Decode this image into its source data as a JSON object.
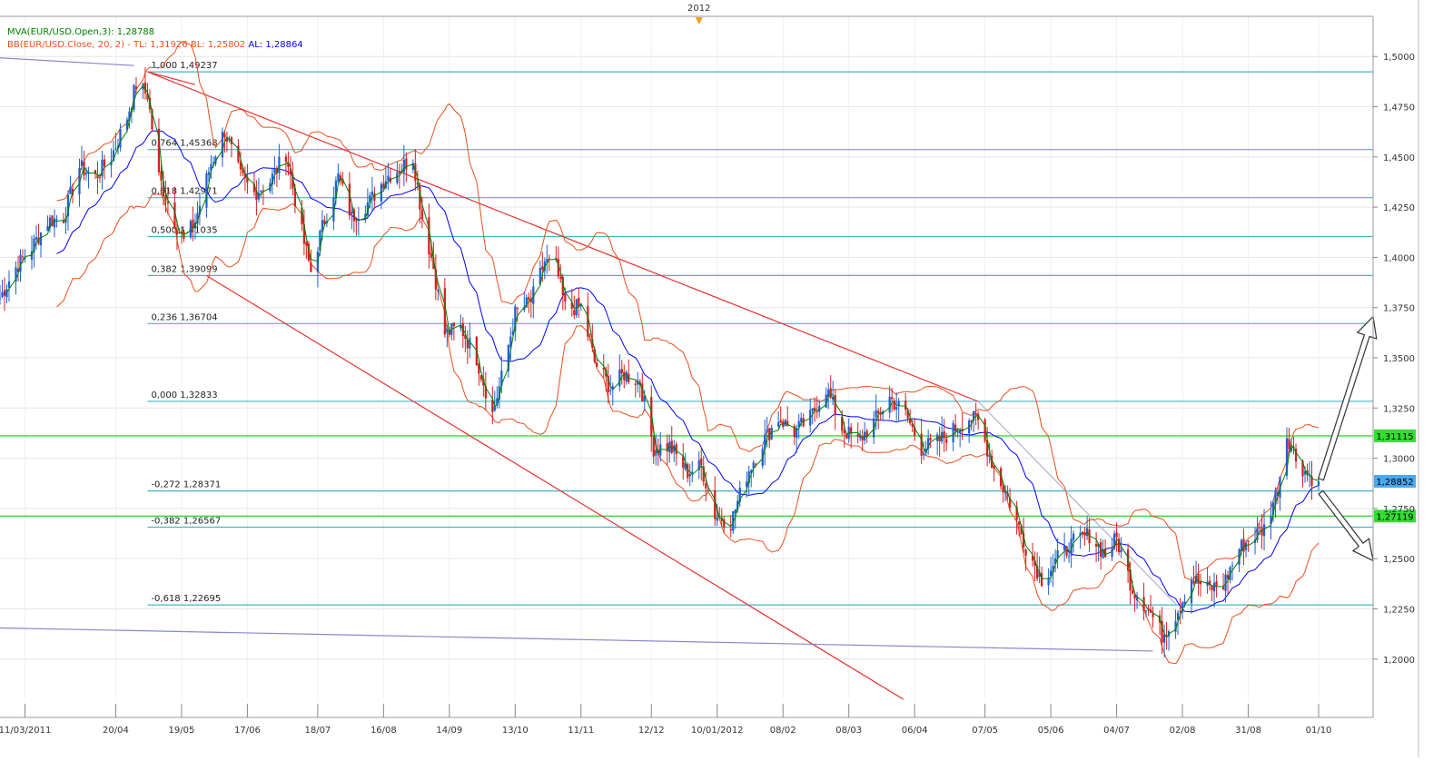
{
  "chart_data": {
    "type": "candlestick",
    "instrument": "EUR/USD",
    "period_marker": {
      "label": "2012",
      "date": "2012-01-02"
    },
    "legend": {
      "mva": {
        "label": "MVA(EUR/USD.Open,3): 1,28788",
        "color": "#008000"
      },
      "bb": {
        "name": "BB(EUR/USD.Close, 20, 2) -",
        "tl": "TL: 1,31926",
        "bl": "BL: 1,25802",
        "al": "AL: 1,28864",
        "color": "#e8501c",
        "al_color": "#0000ff"
      }
    },
    "x_axis": {
      "start": "2011-02-28",
      "end": "2012-10-25",
      "ticks": [
        {
          "label": "11/03/2011",
          "date": "2011-03-11"
        },
        {
          "label": "20/04",
          "date": "2011-04-20"
        },
        {
          "label": "19/05",
          "date": "2011-05-19"
        },
        {
          "label": "17/06",
          "date": "2011-06-17"
        },
        {
          "label": "18/07",
          "date": "2011-07-18"
        },
        {
          "label": "16/08",
          "date": "2011-08-16"
        },
        {
          "label": "14/09",
          "date": "2011-09-14"
        },
        {
          "label": "13/10",
          "date": "2011-10-13"
        },
        {
          "label": "11/11",
          "date": "2011-11-11"
        },
        {
          "label": "12/12",
          "date": "2011-12-12"
        },
        {
          "label": "10/01/2012",
          "date": "2012-01-10"
        },
        {
          "label": "08/02",
          "date": "2012-02-08"
        },
        {
          "label": "08/03",
          "date": "2012-03-08"
        },
        {
          "label": "06/04",
          "date": "2012-04-06"
        },
        {
          "label": "07/05",
          "date": "2012-05-07"
        },
        {
          "label": "05/06",
          "date": "2012-06-05"
        },
        {
          "label": "04/07",
          "date": "2012-07-04"
        },
        {
          "label": "02/08",
          "date": "2012-08-02"
        },
        {
          "label": "31/08",
          "date": "2012-08-31"
        },
        {
          "label": "01/10",
          "date": "2012-10-01"
        }
      ]
    },
    "y_axis": {
      "min": 1.18,
      "max": 1.52,
      "ticks": [
        "1,5000",
        "1,4750",
        "1,4500",
        "1,4250",
        "1,4000",
        "1,3750",
        "1,3500",
        "1,3250",
        "1,3000",
        "1,2750",
        "1,2500",
        "1,2250",
        "1,2000"
      ],
      "tick_values": [
        1.5,
        1.475,
        1.45,
        1.425,
        1.4,
        1.375,
        1.35,
        1.325,
        1.3,
        1.275,
        1.25,
        1.225,
        1.2
      ],
      "gridlines": true,
      "position": "right"
    },
    "fibonacci": {
      "color": "#46b4c8",
      "start_date": "2011-05-04",
      "levels": [
        {
          "label": "1,000 1,49237",
          "value": 1.49237
        },
        {
          "label": "0,764 1,45368",
          "value": 1.45368
        },
        {
          "label": "0,618 1,42971",
          "value": 1.42971
        },
        {
          "label": "0,500 1,41035",
          "value": 1.41035
        },
        {
          "label": "0,382 1,39099",
          "value": 1.39099
        },
        {
          "label": "0,236 1,36704",
          "value": 1.36704
        },
        {
          "label": "0,000 1,32833",
          "value": 1.32833
        },
        {
          "label": "-0,272 1,28371",
          "value": 1.28371
        },
        {
          "label": "-0,382 1,26567",
          "value": 1.26567
        },
        {
          "label": "-0,618 1,22695",
          "value": 1.22695
        }
      ]
    },
    "horizontal_lines": {
      "color": "#33dd33",
      "levels": [
        {
          "label": "1,31115",
          "value": 1.31115
        },
        {
          "label": "1,27119",
          "value": 1.27119
        }
      ]
    },
    "last_price": {
      "label": "1,28852",
      "value": 1.28852,
      "color": "#4aa8f0"
    },
    "trendlines": [
      {
        "color": "#e83030",
        "points": [
          [
            "2011-05-04",
            1.4924
          ],
          [
            "2012-05-04",
            1.3283
          ]
        ]
      },
      {
        "color": "#e83030",
        "points": [
          [
            "2011-05-04",
            1.4924
          ],
          [
            "2011-05-25",
            1.486
          ]
        ]
      },
      {
        "color": "#e83030",
        "points": [
          [
            "2011-05-30",
            1.3909
          ],
          [
            "2012-04-01",
            1.18
          ]
        ]
      },
      {
        "color": "#8888cc",
        "points": [
          [
            "2011-02-28",
            1.4993
          ],
          [
            "2011-04-28",
            1.4955
          ]
        ]
      },
      {
        "color": "#8888cc",
        "points": [
          [
            "2011-02-28",
            1.2155
          ],
          [
            "2012-07-20",
            1.204
          ]
        ]
      },
      {
        "color": "#b0b0d0",
        "points": [
          [
            "2012-05-04",
            1.3283
          ],
          [
            "2012-07-30",
            1.2275
          ]
        ]
      }
    ],
    "projection_arrows": [
      {
        "direction": "up",
        "points": [
          [
            "2012-10-02",
            1.2895
          ],
          [
            "2012-10-25",
            1.3705
          ]
        ]
      },
      {
        "direction": "down",
        "points": [
          [
            "2012-10-02",
            1.283
          ],
          [
            "2012-10-25",
            1.249
          ]
        ]
      }
    ],
    "series": [
      {
        "name": "EUR/USD (daily close, approx.)",
        "color_up": "#2060d0",
        "color_down": "#d42020",
        "points": [
          [
            "2011-02-28",
            1.38
          ],
          [
            "2011-03-07",
            1.395
          ],
          [
            "2011-03-14",
            1.405
          ],
          [
            "2011-03-21",
            1.418
          ],
          [
            "2011-03-28",
            1.42
          ],
          [
            "2011-04-04",
            1.445
          ],
          [
            "2011-04-11",
            1.44
          ],
          [
            "2011-04-18",
            1.45
          ],
          [
            "2011-04-25",
            1.47
          ],
          [
            "2011-04-29",
            1.486
          ],
          [
            "2011-05-04",
            1.481
          ],
          [
            "2011-05-09",
            1.44
          ],
          [
            "2011-05-16",
            1.418
          ],
          [
            "2011-05-20",
            1.408
          ],
          [
            "2011-05-25",
            1.418
          ],
          [
            "2011-06-01",
            1.447
          ],
          [
            "2011-06-07",
            1.463
          ],
          [
            "2011-06-14",
            1.44
          ],
          [
            "2011-06-20",
            1.432
          ],
          [
            "2011-06-27",
            1.438
          ],
          [
            "2011-07-04",
            1.452
          ],
          [
            "2011-07-11",
            1.412
          ],
          [
            "2011-07-15",
            1.393
          ],
          [
            "2011-07-20",
            1.415
          ],
          [
            "2011-07-27",
            1.44
          ],
          [
            "2011-08-02",
            1.42
          ],
          [
            "2011-08-10",
            1.428
          ],
          [
            "2011-08-17",
            1.44
          ],
          [
            "2011-08-24",
            1.445
          ],
          [
            "2011-08-29",
            1.45
          ],
          [
            "2011-09-02",
            1.42
          ],
          [
            "2011-09-07",
            1.395
          ],
          [
            "2011-09-12",
            1.362
          ],
          [
            "2011-09-19",
            1.365
          ],
          [
            "2011-09-26",
            1.35
          ],
          [
            "2011-10-03",
            1.322
          ],
          [
            "2011-10-07",
            1.34
          ],
          [
            "2011-10-13",
            1.372
          ],
          [
            "2011-10-20",
            1.378
          ],
          [
            "2011-10-26",
            1.398
          ],
          [
            "2011-10-31",
            1.395
          ],
          [
            "2011-11-04",
            1.375
          ],
          [
            "2011-11-11",
            1.375
          ],
          [
            "2011-11-17",
            1.348
          ],
          [
            "2011-11-24",
            1.335
          ],
          [
            "2011-11-30",
            1.342
          ],
          [
            "2011-12-07",
            1.338
          ],
          [
            "2011-12-13",
            1.305
          ],
          [
            "2011-12-20",
            1.306
          ],
          [
            "2011-12-28",
            1.293
          ],
          [
            "2012-01-03",
            1.296
          ],
          [
            "2012-01-09",
            1.272
          ],
          [
            "2012-01-16",
            1.268
          ],
          [
            "2012-01-23",
            1.292
          ],
          [
            "2012-01-30",
            1.308
          ],
          [
            "2012-02-06",
            1.32
          ],
          [
            "2012-02-13",
            1.313
          ],
          [
            "2012-02-20",
            1.32
          ],
          [
            "2012-02-27",
            1.335
          ],
          [
            "2012-03-05",
            1.315
          ],
          [
            "2012-03-12",
            1.308
          ],
          [
            "2012-03-19",
            1.318
          ],
          [
            "2012-03-26",
            1.33
          ],
          [
            "2012-04-02",
            1.322
          ],
          [
            "2012-04-09",
            1.305
          ],
          [
            "2012-04-16",
            1.308
          ],
          [
            "2012-04-23",
            1.314
          ],
          [
            "2012-04-30",
            1.32
          ],
          [
            "2012-05-04",
            1.318
          ],
          [
            "2012-05-11",
            1.295
          ],
          [
            "2012-05-18",
            1.278
          ],
          [
            "2012-05-25",
            1.256
          ],
          [
            "2012-06-01",
            1.24
          ],
          [
            "2012-06-08",
            1.25
          ],
          [
            "2012-06-15",
            1.258
          ],
          [
            "2012-06-22",
            1.262
          ],
          [
            "2012-06-29",
            1.252
          ],
          [
            "2012-07-04",
            1.26
          ],
          [
            "2012-07-11",
            1.235
          ],
          [
            "2012-07-18",
            1.225
          ],
          [
            "2012-07-24",
            1.212
          ],
          [
            "2012-07-30",
            1.222
          ],
          [
            "2012-08-06",
            1.24
          ],
          [
            "2012-08-13",
            1.235
          ],
          [
            "2012-08-20",
            1.237
          ],
          [
            "2012-08-27",
            1.255
          ],
          [
            "2012-09-03",
            1.262
          ],
          [
            "2012-09-07",
            1.265
          ],
          [
            "2012-09-13",
            1.285
          ],
          [
            "2012-09-17",
            1.312
          ],
          [
            "2012-09-21",
            1.3
          ],
          [
            "2012-09-26",
            1.292
          ],
          [
            "2012-10-01",
            1.2885
          ]
        ]
      }
    ]
  }
}
